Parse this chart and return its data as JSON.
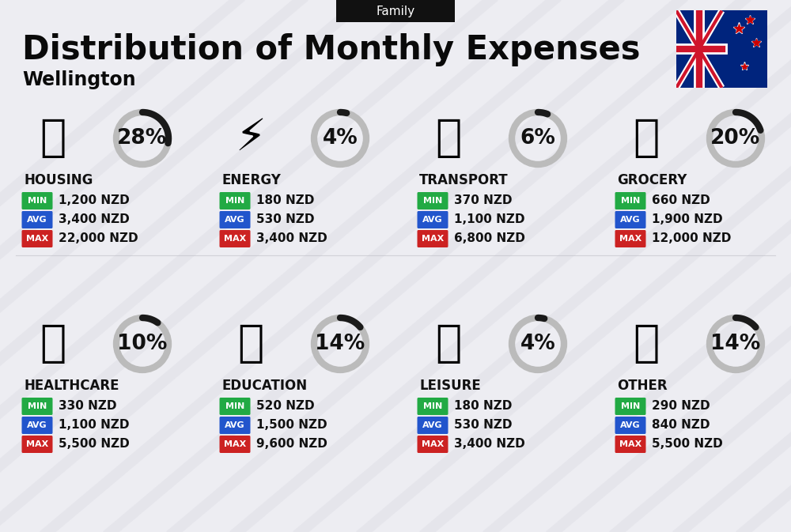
{
  "title": "Distribution of Monthly Expenses",
  "subtitle": "Wellington",
  "header_tag": "Family",
  "bg_color": "#ededf2",
  "categories": [
    {
      "name": "HOUSING",
      "pct": 28,
      "min": "1,200 NZD",
      "avg": "3,400 NZD",
      "max": "22,000 NZD"
    },
    {
      "name": "ENERGY",
      "pct": 4,
      "min": "180 NZD",
      "avg": "530 NZD",
      "max": "3,400 NZD"
    },
    {
      "name": "TRANSPORT",
      "pct": 6,
      "min": "370 NZD",
      "avg": "1,100 NZD",
      "max": "6,800 NZD"
    },
    {
      "name": "GROCERY",
      "pct": 20,
      "min": "660 NZD",
      "avg": "1,900 NZD",
      "max": "12,000 NZD"
    },
    {
      "name": "HEALTHCARE",
      "pct": 10,
      "min": "330 NZD",
      "avg": "1,100 NZD",
      "max": "5,500 NZD"
    },
    {
      "name": "EDUCATION",
      "pct": 14,
      "min": "520 NZD",
      "avg": "1,500 NZD",
      "max": "9,600 NZD"
    },
    {
      "name": "LEISURE",
      "pct": 4,
      "min": "180 NZD",
      "avg": "530 NZD",
      "max": "3,400 NZD"
    },
    {
      "name": "OTHER",
      "pct": 14,
      "min": "290 NZD",
      "avg": "840 NZD",
      "max": "5,500 NZD"
    }
  ],
  "min_color": "#22aa44",
  "avg_color": "#2255cc",
  "max_color": "#cc2222",
  "arc_color": "#1a1a1a",
  "arc_bg_color": "#bbbbbb",
  "title_fontsize": 30,
  "subtitle_fontsize": 17,
  "cat_fontsize": 12,
  "val_fontsize": 11,
  "pct_fontsize": 19
}
